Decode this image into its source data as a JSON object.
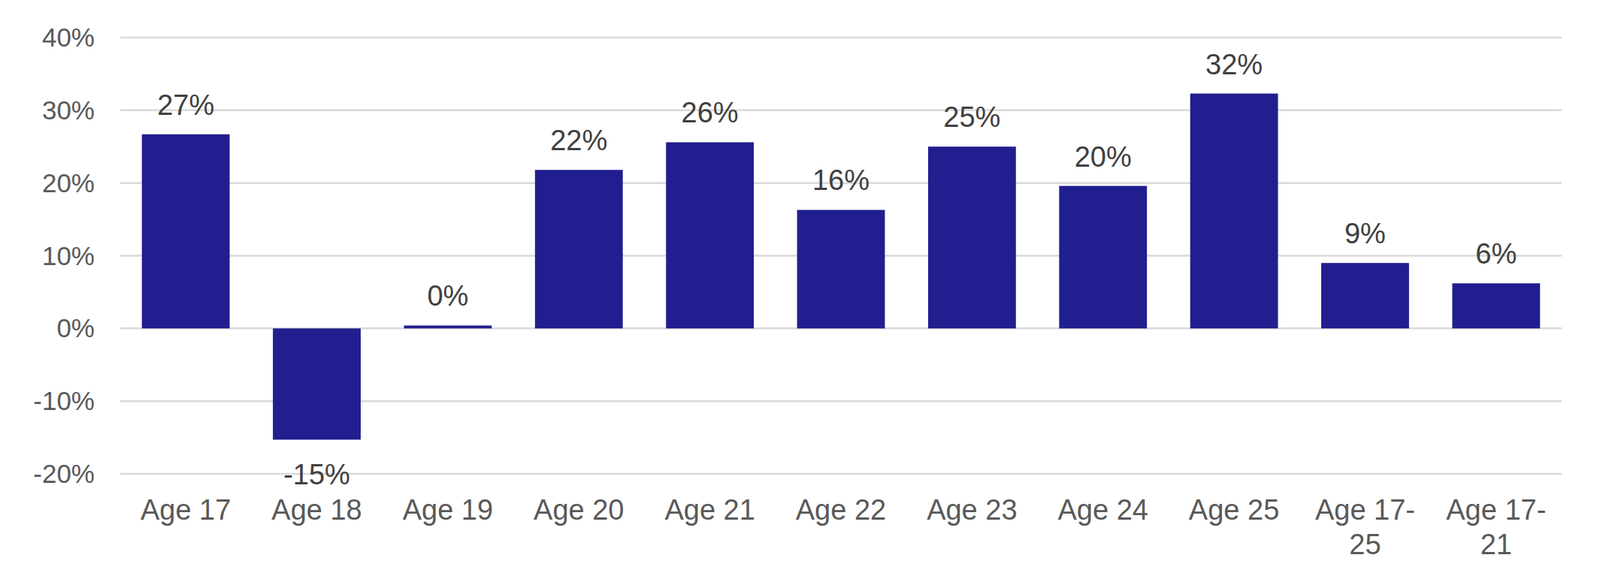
{
  "chart_data": {
    "type": "bar",
    "categories": [
      "Age 17",
      "Age 18",
      "Age 19",
      "Age 20",
      "Age 21",
      "Age 22",
      "Age 23",
      "Age 24",
      "Age 25",
      "Age 17-25",
      "Age 17-21"
    ],
    "values": [
      26.7,
      -15.3,
      0.4,
      21.8,
      25.6,
      16.3,
      25.0,
      19.6,
      32.3,
      9.0,
      6.2
    ],
    "value_labels": [
      "27%",
      "-15%",
      "0%",
      "22%",
      "26%",
      "16%",
      "25%",
      "20%",
      "32%",
      "9%",
      "6%"
    ],
    "color": "#211e8f",
    "ylim": [
      -20,
      40
    ],
    "yticks": [
      {
        "value": -20,
        "label": "-20%"
      },
      {
        "value": -10,
        "label": "-10%"
      },
      {
        "value": 0,
        "label": "0%"
      },
      {
        "value": 10,
        "label": "10%"
      },
      {
        "value": 20,
        "label": "20%"
      },
      {
        "value": 30,
        "label": "30%"
      },
      {
        "value": 40,
        "label": "40%"
      }
    ],
    "grid": true,
    "data_labels": true
  }
}
